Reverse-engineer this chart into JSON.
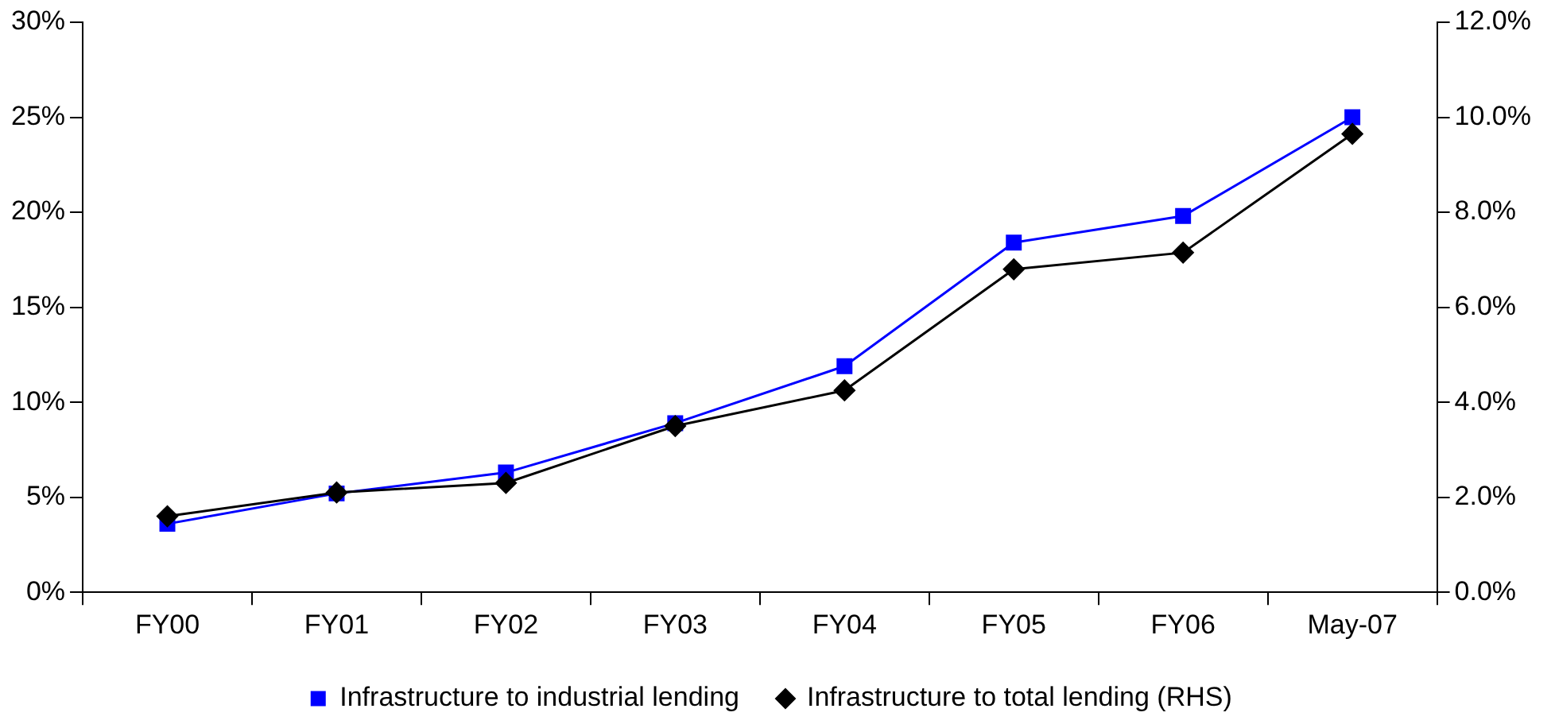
{
  "chart_data": {
    "type": "line",
    "categories": [
      "FY00",
      "FY01",
      "FY02",
      "FY03",
      "FY04",
      "FY05",
      "FY06",
      "May-07"
    ],
    "series": [
      {
        "name": "Infrastructure to industrial lending",
        "color": "#0000ff",
        "marker": "square",
        "values": [
          3.6,
          5.2,
          6.3,
          8.9,
          11.9,
          18.4,
          19.8,
          25.0
        ]
      },
      {
        "name": "Infrastructure to total lending (RHS)",
        "color": "#000000",
        "marker": "diamond",
        "axis": "y2",
        "values": [
          1.6,
          2.1,
          2.3,
          3.5,
          4.25,
          6.8,
          7.15,
          9.65
        ]
      }
    ],
    "ylim": [
      0,
      30
    ],
    "yticks": [
      {
        "value": 0,
        "label": "0%"
      },
      {
        "value": 5,
        "label": "5%"
      },
      {
        "value": 10,
        "label": "10%"
      },
      {
        "value": 15,
        "label": "15%"
      },
      {
        "value": 20,
        "label": "20%"
      },
      {
        "value": 25,
        "label": "25%"
      },
      {
        "value": 30,
        "label": "30%"
      }
    ],
    "y2lim": [
      0,
      12
    ],
    "y2ticks": [
      {
        "value": 0,
        "label": "0.0%"
      },
      {
        "value": 2,
        "label": "2.0%"
      },
      {
        "value": 4,
        "label": "4.0%"
      },
      {
        "value": 6,
        "label": "6.0%"
      },
      {
        "value": 8,
        "label": "8.0%"
      },
      {
        "value": 10,
        "label": "10.0%"
      },
      {
        "value": 12,
        "label": "12.0%"
      }
    ],
    "grid": false,
    "legend": "bottom",
    "line_style": "solid"
  }
}
